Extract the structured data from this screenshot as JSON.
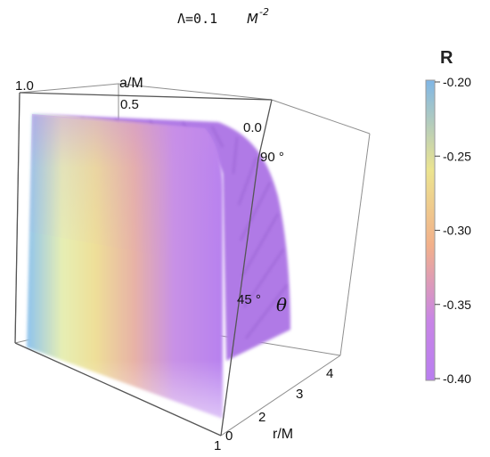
{
  "title": {
    "text": "Λ=0.1",
    "unit": "M",
    "exponent": "-2"
  },
  "colorbar": {
    "label": "R",
    "range": [
      -0.4,
      -0.2
    ],
    "ticks": [
      "-0.20",
      "-0.25",
      "-0.30",
      "-0.35",
      "-0.40"
    ],
    "colors": [
      "#7fb6e6",
      "#ece48f",
      "#f2b08a",
      "#c885e6",
      "#b97ef0"
    ]
  },
  "chart_data": {
    "type": "heatmap",
    "title": "Λ=0.1 M^-2",
    "axes": {
      "a": {
        "label": "a/M",
        "ticks": [
          "1.0",
          "0.5",
          "0.0"
        ],
        "range": [
          0,
          1
        ]
      },
      "r": {
        "label": "r/M",
        "ticks": [
          "0",
          "1",
          "2",
          "3",
          "4"
        ],
        "range": [
          0,
          4.5
        ]
      },
      "theta": {
        "label": "θ",
        "ticks": [
          "45 °",
          "90 °"
        ],
        "range": [
          0,
          90
        ]
      }
    },
    "value_label": "R",
    "value_range": [
      -0.4,
      -0.2
    ],
    "surface_color_note": "R near -0.20 at a/M=1, increasing toward -0.40 as a/M decreases"
  }
}
